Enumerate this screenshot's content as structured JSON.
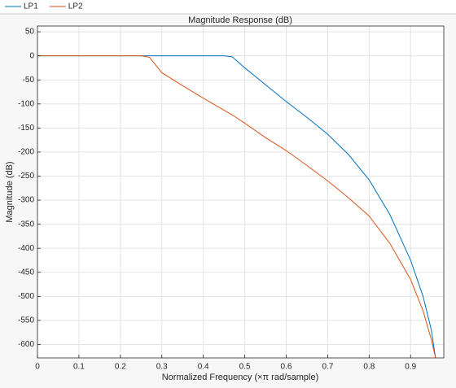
{
  "chart_data": {
    "type": "line",
    "title": "Magnitude Response (dB)",
    "x_label": "Normalized Frequency (×π rad/sample)",
    "y_label": "Magnitude (dB)",
    "x": [
      0,
      0.1,
      0.2,
      0.25,
      0.27,
      0.3,
      0.35,
      0.4,
      0.45,
      0.47,
      0.5,
      0.55,
      0.6,
      0.65,
      0.7,
      0.75,
      0.8,
      0.85,
      0.9,
      0.93,
      0.95,
      0.96
    ],
    "series": [
      {
        "name": "LP1",
        "color": "#0072bd",
        "values": [
          0,
          0,
          0,
          0,
          0,
          0,
          0,
          0,
          0,
          -2,
          -25,
          -60,
          -95,
          -128,
          -163,
          -205,
          -258,
          -330,
          -425,
          -500,
          -570,
          -628
        ]
      },
      {
        "name": "LP2",
        "color": "#d95319",
        "values": [
          0,
          0,
          0,
          0,
          -3,
          -35,
          -62,
          -88,
          -113,
          -123,
          -140,
          -170,
          -197,
          -228,
          -260,
          -295,
          -333,
          -390,
          -465,
          -530,
          -590,
          -628
        ]
      }
    ],
    "xlim": [
      0,
      0.98
    ],
    "ylim": [
      -628,
      62
    ],
    "xticks": [
      0,
      0.1,
      0.2,
      0.3,
      0.4,
      0.5,
      0.6,
      0.7,
      0.8,
      0.9
    ],
    "yticks": [
      50,
      0,
      -50,
      -100,
      -150,
      -200,
      -250,
      -300,
      -350,
      -400,
      -450,
      -500,
      -550,
      -600
    ],
    "grid": true,
    "legend": "top"
  }
}
